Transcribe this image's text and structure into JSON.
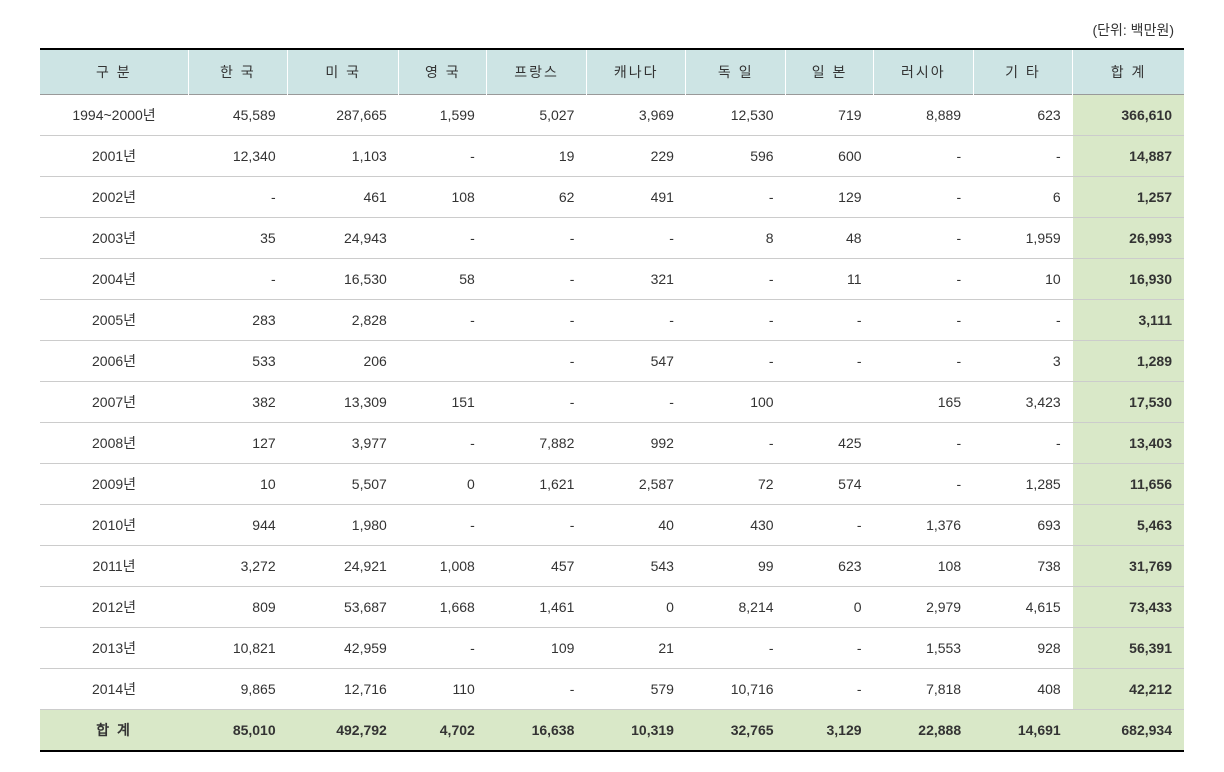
{
  "unit_label": "(단위: 백만원)",
  "table": {
    "columns": [
      "구 분",
      "한 국",
      "미 국",
      "영 국",
      "프랑스",
      "캐나다",
      "독 일",
      "일 본",
      "러시아",
      "기 타",
      "합 계"
    ],
    "rows": [
      {
        "label": "1994~2000년",
        "cells": [
          "45,589",
          "287,665",
          "1,599",
          "5,027",
          "3,969",
          "12,530",
          "719",
          "8,889",
          "623",
          "366,610"
        ]
      },
      {
        "label": "2001년",
        "cells": [
          "12,340",
          "1,103",
          "-",
          "19",
          "229",
          "596",
          "600",
          "-",
          "-",
          "14,887"
        ]
      },
      {
        "label": "2002년",
        "cells": [
          "-",
          "461",
          "108",
          "62",
          "491",
          "-",
          "129",
          "-",
          "6",
          "1,257"
        ]
      },
      {
        "label": "2003년",
        "cells": [
          "35",
          "24,943",
          "-",
          "-",
          "-",
          "8",
          "48",
          "-",
          "1,959",
          "26,993"
        ]
      },
      {
        "label": "2004년",
        "cells": [
          "-",
          "16,530",
          "58",
          "-",
          "321",
          "-",
          "11",
          "-",
          "10",
          "16,930"
        ]
      },
      {
        "label": "2005년",
        "cells": [
          "283",
          "2,828",
          "-",
          "-",
          "-",
          "-",
          "-",
          "-",
          "-",
          "3,111"
        ]
      },
      {
        "label": "2006년",
        "cells": [
          "533",
          "206",
          "",
          "-",
          "547",
          "-",
          "-",
          "-",
          "3",
          "1,289"
        ]
      },
      {
        "label": "2007년",
        "cells": [
          "382",
          "13,309",
          "151",
          "-",
          "-",
          "100",
          "",
          "165",
          "3,423",
          "17,530"
        ]
      },
      {
        "label": "2008년",
        "cells": [
          "127",
          "3,977",
          "-",
          "7,882",
          "992",
          "-",
          "425",
          "-",
          "-",
          "13,403"
        ]
      },
      {
        "label": "2009년",
        "cells": [
          "10",
          "5,507",
          "0",
          "1,621",
          "2,587",
          "72",
          "574",
          "-",
          "1,285",
          "11,656"
        ]
      },
      {
        "label": "2010년",
        "cells": [
          "944",
          "1,980",
          "-",
          "-",
          "40",
          "430",
          "-",
          "1,376",
          "693",
          "5,463"
        ]
      },
      {
        "label": "2011년",
        "cells": [
          "3,272",
          "24,921",
          "1,008",
          "457",
          "543",
          "99",
          "623",
          "108",
          "738",
          "31,769"
        ]
      },
      {
        "label": "2012년",
        "cells": [
          "809",
          "53,687",
          "1,668",
          "1,461",
          "0",
          "8,214",
          "0",
          "2,979",
          "4,615",
          "73,433"
        ]
      },
      {
        "label": "2013년",
        "cells": [
          "10,821",
          "42,959",
          "-",
          "109",
          "21",
          "-",
          "-",
          "1,553",
          "928",
          "56,391"
        ]
      },
      {
        "label": "2014년",
        "cells": [
          "9,865",
          "12,716",
          "110",
          "-",
          "579",
          "10,716",
          "-",
          "7,818",
          "408",
          "42,212"
        ]
      }
    ],
    "total_row": {
      "label": "합 계",
      "cells": [
        "85,010",
        "492,792",
        "4,702",
        "16,638",
        "10,319",
        "32,765",
        "3,129",
        "22,888",
        "14,691",
        "682,934"
      ]
    }
  },
  "colors": {
    "header_bg": "#cde4e4",
    "total_bg": "#d9e8c8",
    "border_dark": "#000000",
    "border_light": "#cccccc",
    "text": "#333333",
    "background": "#ffffff"
  }
}
